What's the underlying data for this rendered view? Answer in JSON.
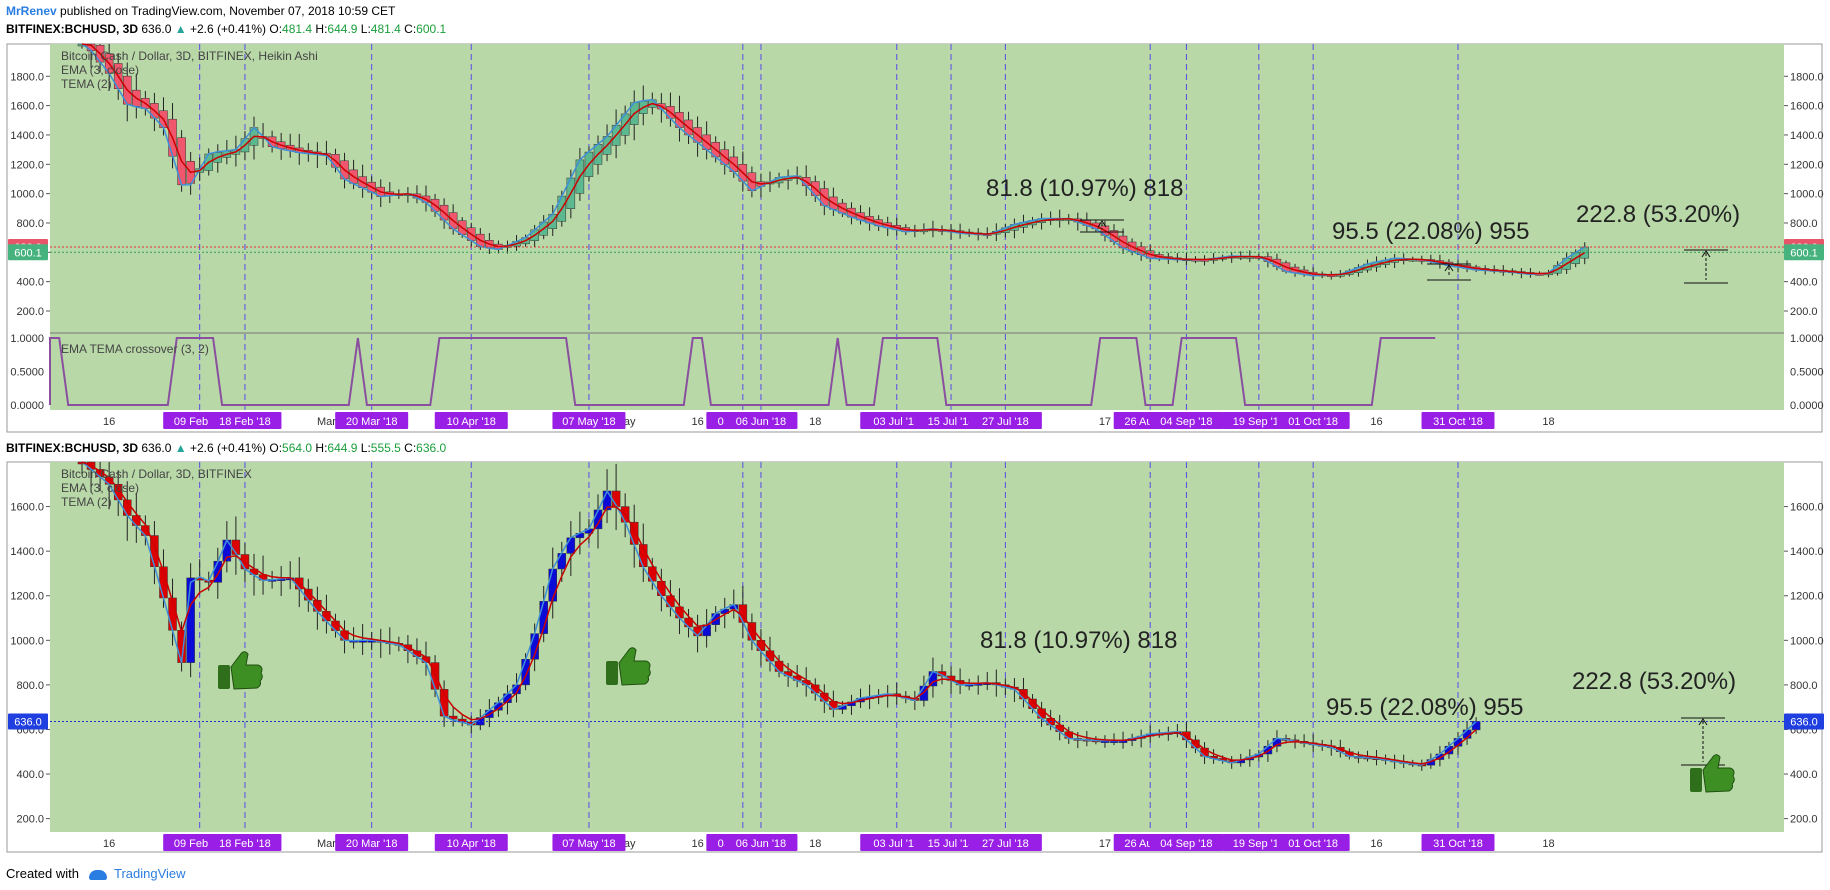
{
  "header": {
    "user": "MrRenev",
    "published": "published on TradingView.com, November 07, 2018 10:59 CET"
  },
  "panel1": {
    "symbol": "BITFINEX:BCHUSD, 3D",
    "price": "636.0",
    "change": "+2.6 (+0.41%)",
    "o": "481.4",
    "h": "644.9",
    "l": "481.4",
    "c": "600.1",
    "legend": [
      "Bitcoin Cash / Dollar, 3D, BITFINEX, Heikin Ashi",
      "EMA (3, close)",
      "TEMA (2)"
    ],
    "osc_label": "EMA TEMA crossover (3, 2)",
    "price_badges": [
      "636.0",
      "600.1"
    ]
  },
  "panel2": {
    "symbol": "BITFINEX:BCHUSD, 3D",
    "price": "636.0",
    "change": "+2.6 (+0.41%)",
    "o": "564.0",
    "h": "644.9",
    "l": "555.5",
    "c": "636.0",
    "legend": [
      "Bitcoin Cash / Dollar, 3D, BITFINEX",
      "EMA (3, close)",
      "TEMA (2)"
    ],
    "price_badge": "636.0"
  },
  "annotations": [
    "81.8 (10.97%) 818",
    "95.5 (22.08%) 955",
    "222.8 (53.20%)"
  ],
  "footer": {
    "created_with": "Created with",
    "brand": "TradingView"
  },
  "colors": {
    "chart_bg": "#b8d8a8",
    "bull_ha": "#5cb88e",
    "bear_ha": "#f0566c",
    "bull": "#0b0bd8",
    "bear": "#dd0000",
    "ema": "#cc0000",
    "tema": "#3f8fd8",
    "osc": "#8a4f9f",
    "vline": "#5a4be8",
    "date_badge": "#9a1fe6",
    "thumb": "#2f6e1b"
  },
  "chart_data": [
    {
      "type": "candlestick",
      "title": "Bitcoin Cash / Dollar, 3D, BITFINEX, Heikin Ashi",
      "ylim": [
        50,
        2020
      ],
      "y_ticks": [
        "2000.0",
        "1800.0",
        "1600.0",
        "1400.0",
        "1200.0",
        "1000.0",
        "800.0",
        "600.0",
        "400.0",
        "200.0"
      ],
      "x_ticks": [
        "16",
        "Feb",
        "Mar",
        "Apr",
        "May",
        "16",
        "18",
        "Aug",
        "17",
        "16",
        "18"
      ],
      "series": [
        {
          "name": "EMA (3, close)"
        },
        {
          "name": "TEMA (2)"
        }
      ],
      "close_path": [
        [
          0,
          2050
        ],
        [
          3,
          1820
        ],
        [
          5,
          1610
        ],
        [
          7,
          1580
        ],
        [
          9,
          1450
        ],
        [
          11,
          1060
        ],
        [
          12,
          1070
        ],
        [
          14,
          1270
        ],
        [
          17,
          1300
        ],
        [
          19,
          1450
        ],
        [
          21,
          1320
        ],
        [
          24,
          1280
        ],
        [
          27,
          1260
        ],
        [
          29,
          1100
        ],
        [
          33,
          980
        ],
        [
          36,
          1000
        ],
        [
          38,
          940
        ],
        [
          41,
          760
        ],
        [
          44,
          640
        ],
        [
          46,
          620
        ],
        [
          49,
          700
        ],
        [
          52,
          860
        ],
        [
          55,
          1230
        ],
        [
          58,
          1390
        ],
        [
          61,
          1620
        ],
        [
          63,
          1640
        ],
        [
          66,
          1450
        ],
        [
          69,
          1300
        ],
        [
          72,
          1150
        ],
        [
          74,
          1020
        ],
        [
          77,
          1110
        ],
        [
          79,
          1120
        ],
        [
          82,
          920
        ],
        [
          85,
          840
        ],
        [
          88,
          780
        ],
        [
          91,
          740
        ],
        [
          94,
          760
        ],
        [
          97,
          730
        ],
        [
          100,
          720
        ],
        [
          103,
          790
        ],
        [
          106,
          830
        ],
        [
          109,
          830
        ],
        [
          112,
          760
        ],
        [
          115,
          630
        ],
        [
          118,
          560
        ],
        [
          121,
          550
        ],
        [
          124,
          550
        ],
        [
          127,
          575
        ],
        [
          130,
          570
        ],
        [
          133,
          470
        ],
        [
          136,
          440
        ],
        [
          139,
          450
        ],
        [
          142,
          520
        ],
        [
          145,
          560
        ],
        [
          148,
          550
        ],
        [
          151,
          510
        ],
        [
          154,
          480
        ],
        [
          157,
          470
        ],
        [
          160,
          450
        ],
        [
          162,
          460
        ],
        [
          164,
          560
        ],
        [
          166,
          636
        ]
      ]
    },
    {
      "type": "line",
      "title": "EMA TEMA crossover (3, 2)",
      "ylim": [
        -0.05,
        1.05
      ],
      "y_ticks": [
        "1.0000",
        "0.5000",
        "0.0000"
      ],
      "values": [
        [
          0,
          0
        ],
        [
          1,
          1
        ],
        [
          3,
          1
        ],
        [
          4,
          0
        ],
        [
          15,
          0
        ],
        [
          16,
          1
        ],
        [
          20,
          1
        ],
        [
          21,
          0
        ],
        [
          35,
          0
        ],
        [
          36,
          1
        ],
        [
          37,
          0
        ],
        [
          44,
          0
        ],
        [
          45,
          1
        ],
        [
          59,
          1
        ],
        [
          60,
          0
        ],
        [
          72,
          0
        ],
        [
          73,
          1
        ],
        [
          74,
          1
        ],
        [
          75,
          0
        ],
        [
          88,
          0
        ],
        [
          89,
          1
        ],
        [
          90,
          0
        ],
        [
          93,
          0
        ],
        [
          94,
          1
        ],
        [
          100,
          1
        ],
        [
          101,
          0
        ],
        [
          117,
          0
        ],
        [
          118,
          1
        ],
        [
          122,
          1
        ],
        [
          123,
          0
        ],
        [
          126,
          0
        ],
        [
          127,
          1
        ],
        [
          133,
          1
        ],
        [
          134,
          0
        ],
        [
          148,
          0
        ],
        [
          149,
          1
        ],
        [
          155,
          1
        ]
      ]
    },
    {
      "type": "candlestick",
      "title": "Bitcoin Cash / Dollar, 3D, BITFINEX",
      "ylim": [
        140,
        1800
      ],
      "y_ticks": [
        "1600.0",
        "1400.0",
        "1200.0",
        "1000.0",
        "800.0",
        "600.0",
        "400.0",
        "200.0"
      ],
      "x_ticks": [
        "16",
        "Feb",
        "Mar",
        "Apr",
        "May",
        "16",
        "18",
        "Aug",
        "17",
        "16",
        "18"
      ],
      "series": [
        {
          "name": "EMA (3, close)"
        },
        {
          "name": "TEMA (2)"
        }
      ],
      "close_path": [
        [
          0,
          1800
        ],
        [
          3,
          1700
        ],
        [
          5,
          1560
        ],
        [
          7,
          1470
        ],
        [
          9,
          1190
        ],
        [
          11,
          900
        ],
        [
          12,
          1280
        ],
        [
          14,
          1260
        ],
        [
          16,
          1450
        ],
        [
          18,
          1320
        ],
        [
          20,
          1270
        ],
        [
          23,
          1280
        ],
        [
          26,
          1130
        ],
        [
          29,
          1000
        ],
        [
          32,
          1000
        ],
        [
          35,
          980
        ],
        [
          38,
          900
        ],
        [
          40,
          660
        ],
        [
          43,
          620
        ],
        [
          46,
          720
        ],
        [
          48,
          800
        ],
        [
          50,
          1030
        ],
        [
          52,
          1320
        ],
        [
          54,
          1460
        ],
        [
          56,
          1500
        ],
        [
          58,
          1670
        ],
        [
          60,
          1530
        ],
        [
          62,
          1330
        ],
        [
          64,
          1200
        ],
        [
          66,
          1100
        ],
        [
          68,
          1020
        ],
        [
          70,
          1120
        ],
        [
          72,
          1160
        ],
        [
          74,
          1000
        ],
        [
          77,
          860
        ],
        [
          80,
          800
        ],
        [
          83,
          690
        ],
        [
          86,
          740
        ],
        [
          89,
          760
        ],
        [
          92,
          730
        ],
        [
          94,
          860
        ],
        [
          97,
          800
        ],
        [
          100,
          810
        ],
        [
          103,
          780
        ],
        [
          106,
          650
        ],
        [
          109,
          560
        ],
        [
          112,
          550
        ],
        [
          115,
          550
        ],
        [
          118,
          580
        ],
        [
          121,
          590
        ],
        [
          124,
          480
        ],
        [
          127,
          450
        ],
        [
          130,
          490
        ],
        [
          132,
          560
        ],
        [
          135,
          540
        ],
        [
          138,
          520
        ],
        [
          140,
          480
        ],
        [
          143,
          470
        ],
        [
          146,
          450
        ],
        [
          148,
          440
        ],
        [
          150,
          490
        ],
        [
          152,
          560
        ],
        [
          154,
          636
        ]
      ]
    }
  ],
  "events": [
    "09 Feb '18",
    "18 Feb '18",
    "20 Mar '18",
    "10 Apr '18",
    "07 May '18",
    "03 Jun '18",
    "06 Jun '18",
    "03 Jul '18",
    "15 Jul '18",
    "27 Jul '18",
    "26 Aug '18",
    "04 Sep '18",
    "19 Sep '18",
    "01 Oct '18",
    "31 Oct '18"
  ]
}
